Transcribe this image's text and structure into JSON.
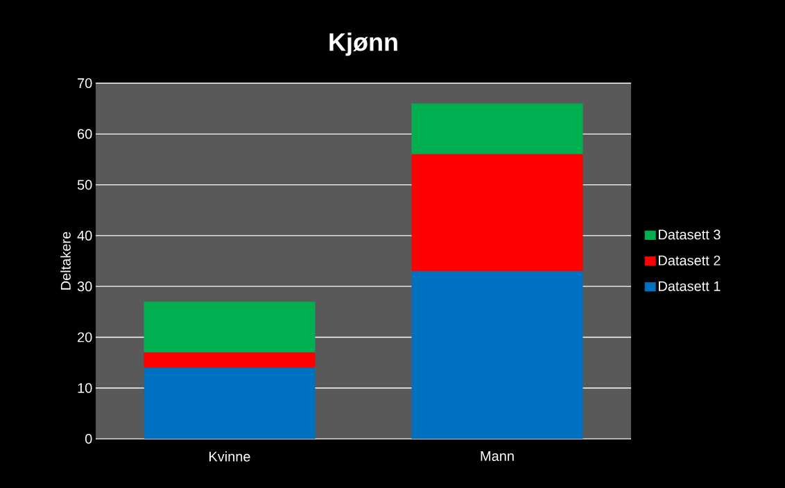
{
  "chart_data": {
    "type": "bar",
    "title": "**Kjønn**",
    "ylabel": "Deltakere",
    "categories": [
      "Kvinne",
      "Mann"
    ],
    "series": [
      {
        "name": "Datasett 1",
        "color": "#0070c0",
        "values": [
          14,
          33
        ]
      },
      {
        "name": "Datasett 2",
        "color": "#ff0000",
        "values": [
          3,
          23
        ]
      },
      {
        "name": "Datasett 3",
        "color": "#00b050",
        "values": [
          10,
          10
        ]
      }
    ],
    "stacked": true,
    "ylim": [
      0,
      70
    ],
    "yticks": [
      0,
      10,
      20,
      30,
      40,
      50,
      60,
      70
    ],
    "grid": "y",
    "legend": "right"
  }
}
